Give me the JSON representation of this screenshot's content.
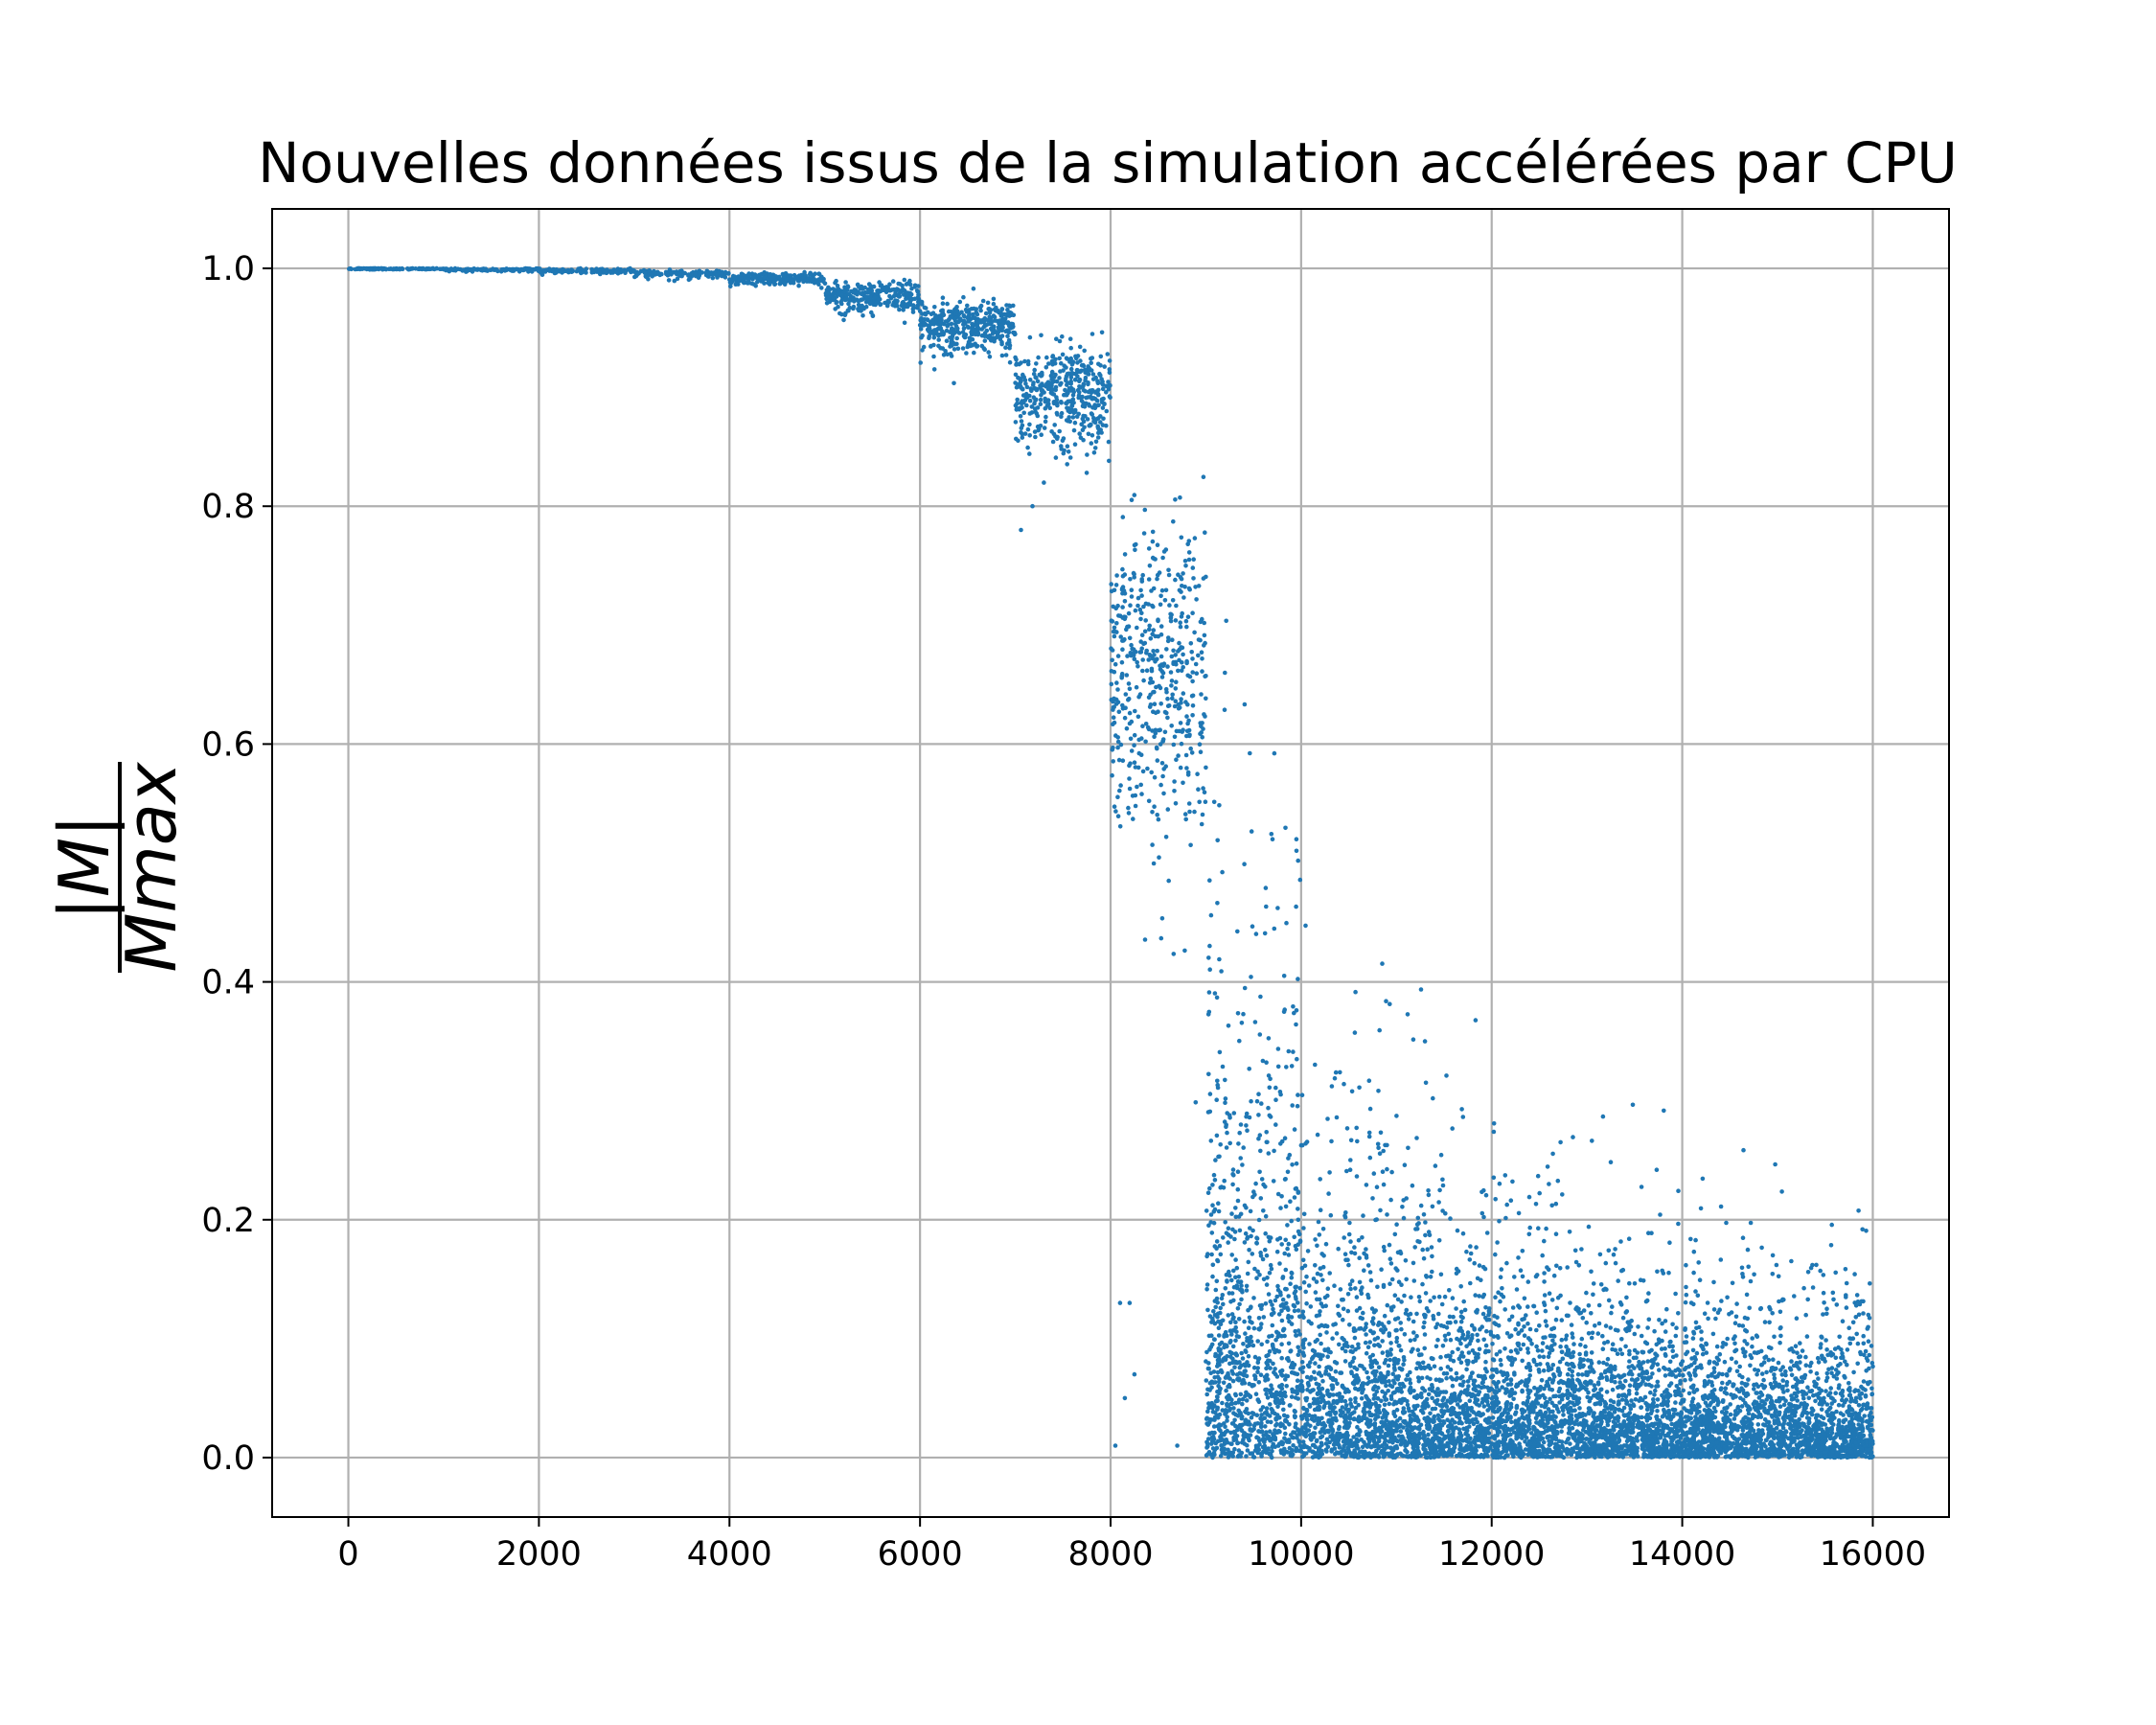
{
  "chart_data": {
    "type": "scatter",
    "title": "Nouvelles données issus de la simulation accélérées par CPU",
    "xlabel": "",
    "ylabel": {
      "numerator": "|M|",
      "denominator": "Mmax"
    },
    "xlim": [
      -800,
      16800
    ],
    "ylim": [
      -0.05,
      1.05
    ],
    "x_ticks": [
      0,
      2000,
      4000,
      6000,
      8000,
      10000,
      12000,
      14000,
      16000
    ],
    "y_ticks": [
      "0.0",
      "0.2",
      "0.4",
      "0.6",
      "0.8",
      "1.0"
    ],
    "grid": true,
    "legend": "none",
    "marker_color": "#1f77b4",
    "segments": [
      {
        "x_range": [
          0,
          1000
        ],
        "y_mean": 1.0,
        "spread": 0.0005,
        "n": 120
      },
      {
        "x_range": [
          1000,
          2000
        ],
        "y_mean": 0.9995,
        "spread": 0.001,
        "n": 120
      },
      {
        "x_range": [
          2000,
          3000
        ],
        "y_mean": 0.999,
        "spread": 0.002,
        "n": 120
      },
      {
        "x_range": [
          3000,
          4000
        ],
        "y_mean": 0.997,
        "spread": 0.003,
        "n": 140
      },
      {
        "x_range": [
          4000,
          5000
        ],
        "y_mean": 0.994,
        "spread": 0.005,
        "n": 200
      },
      {
        "x_range": [
          5000,
          6000
        ],
        "y_mean": 0.983,
        "spread": 0.012,
        "n": 300
      },
      {
        "x_range": [
          6000,
          7000
        ],
        "y_mean": 0.963,
        "spread": 0.02,
        "n": 400
      },
      {
        "x_range": [
          7000,
          8000
        ],
        "y_mean": 0.915,
        "spread": 0.04,
        "n": 450
      },
      {
        "x_range": [
          8000,
          9000
        ],
        "y_mean": 0.73,
        "spread": 0.13,
        "n": 500
      },
      {
        "x_range": [
          9000,
          10000
        ],
        "y_mean": 0.15,
        "spread": 0.12,
        "n": 1100
      },
      {
        "x_range": [
          10000,
          11000
        ],
        "y_mean": 0.07,
        "spread": 0.07,
        "n": 1000
      },
      {
        "x_range": [
          11000,
          12000
        ],
        "y_mean": 0.06,
        "spread": 0.06,
        "n": 1000
      },
      {
        "x_range": [
          12000,
          13000
        ],
        "y_mean": 0.05,
        "spread": 0.05,
        "n": 1000
      },
      {
        "x_range": [
          13000,
          14000
        ],
        "y_mean": 0.045,
        "spread": 0.045,
        "n": 1000
      },
      {
        "x_range": [
          14000,
          15000
        ],
        "y_mean": 0.04,
        "spread": 0.04,
        "n": 1000
      },
      {
        "x_range": [
          15000,
          16000
        ],
        "y_mean": 0.035,
        "spread": 0.035,
        "n": 1000
      }
    ],
    "outliers": [
      {
        "x": 7060,
        "y": 0.78
      },
      {
        "x": 7180,
        "y": 0.8
      },
      {
        "x": 8050,
        "y": 0.01
      },
      {
        "x": 8100,
        "y": 0.13
      },
      {
        "x": 8150,
        "y": 0.05
      },
      {
        "x": 8200,
        "y": 0.13
      },
      {
        "x": 8250,
        "y": 0.07
      },
      {
        "x": 8700,
        "y": 0.01
      },
      {
        "x": 9200,
        "y": 0.66
      },
      {
        "x": 9700,
        "y": 0.52
      },
      {
        "x": 9950,
        "y": 0.52
      },
      {
        "x": 11300,
        "y": 0.35
      },
      {
        "x": 12600,
        "y": 0.23
      }
    ]
  }
}
